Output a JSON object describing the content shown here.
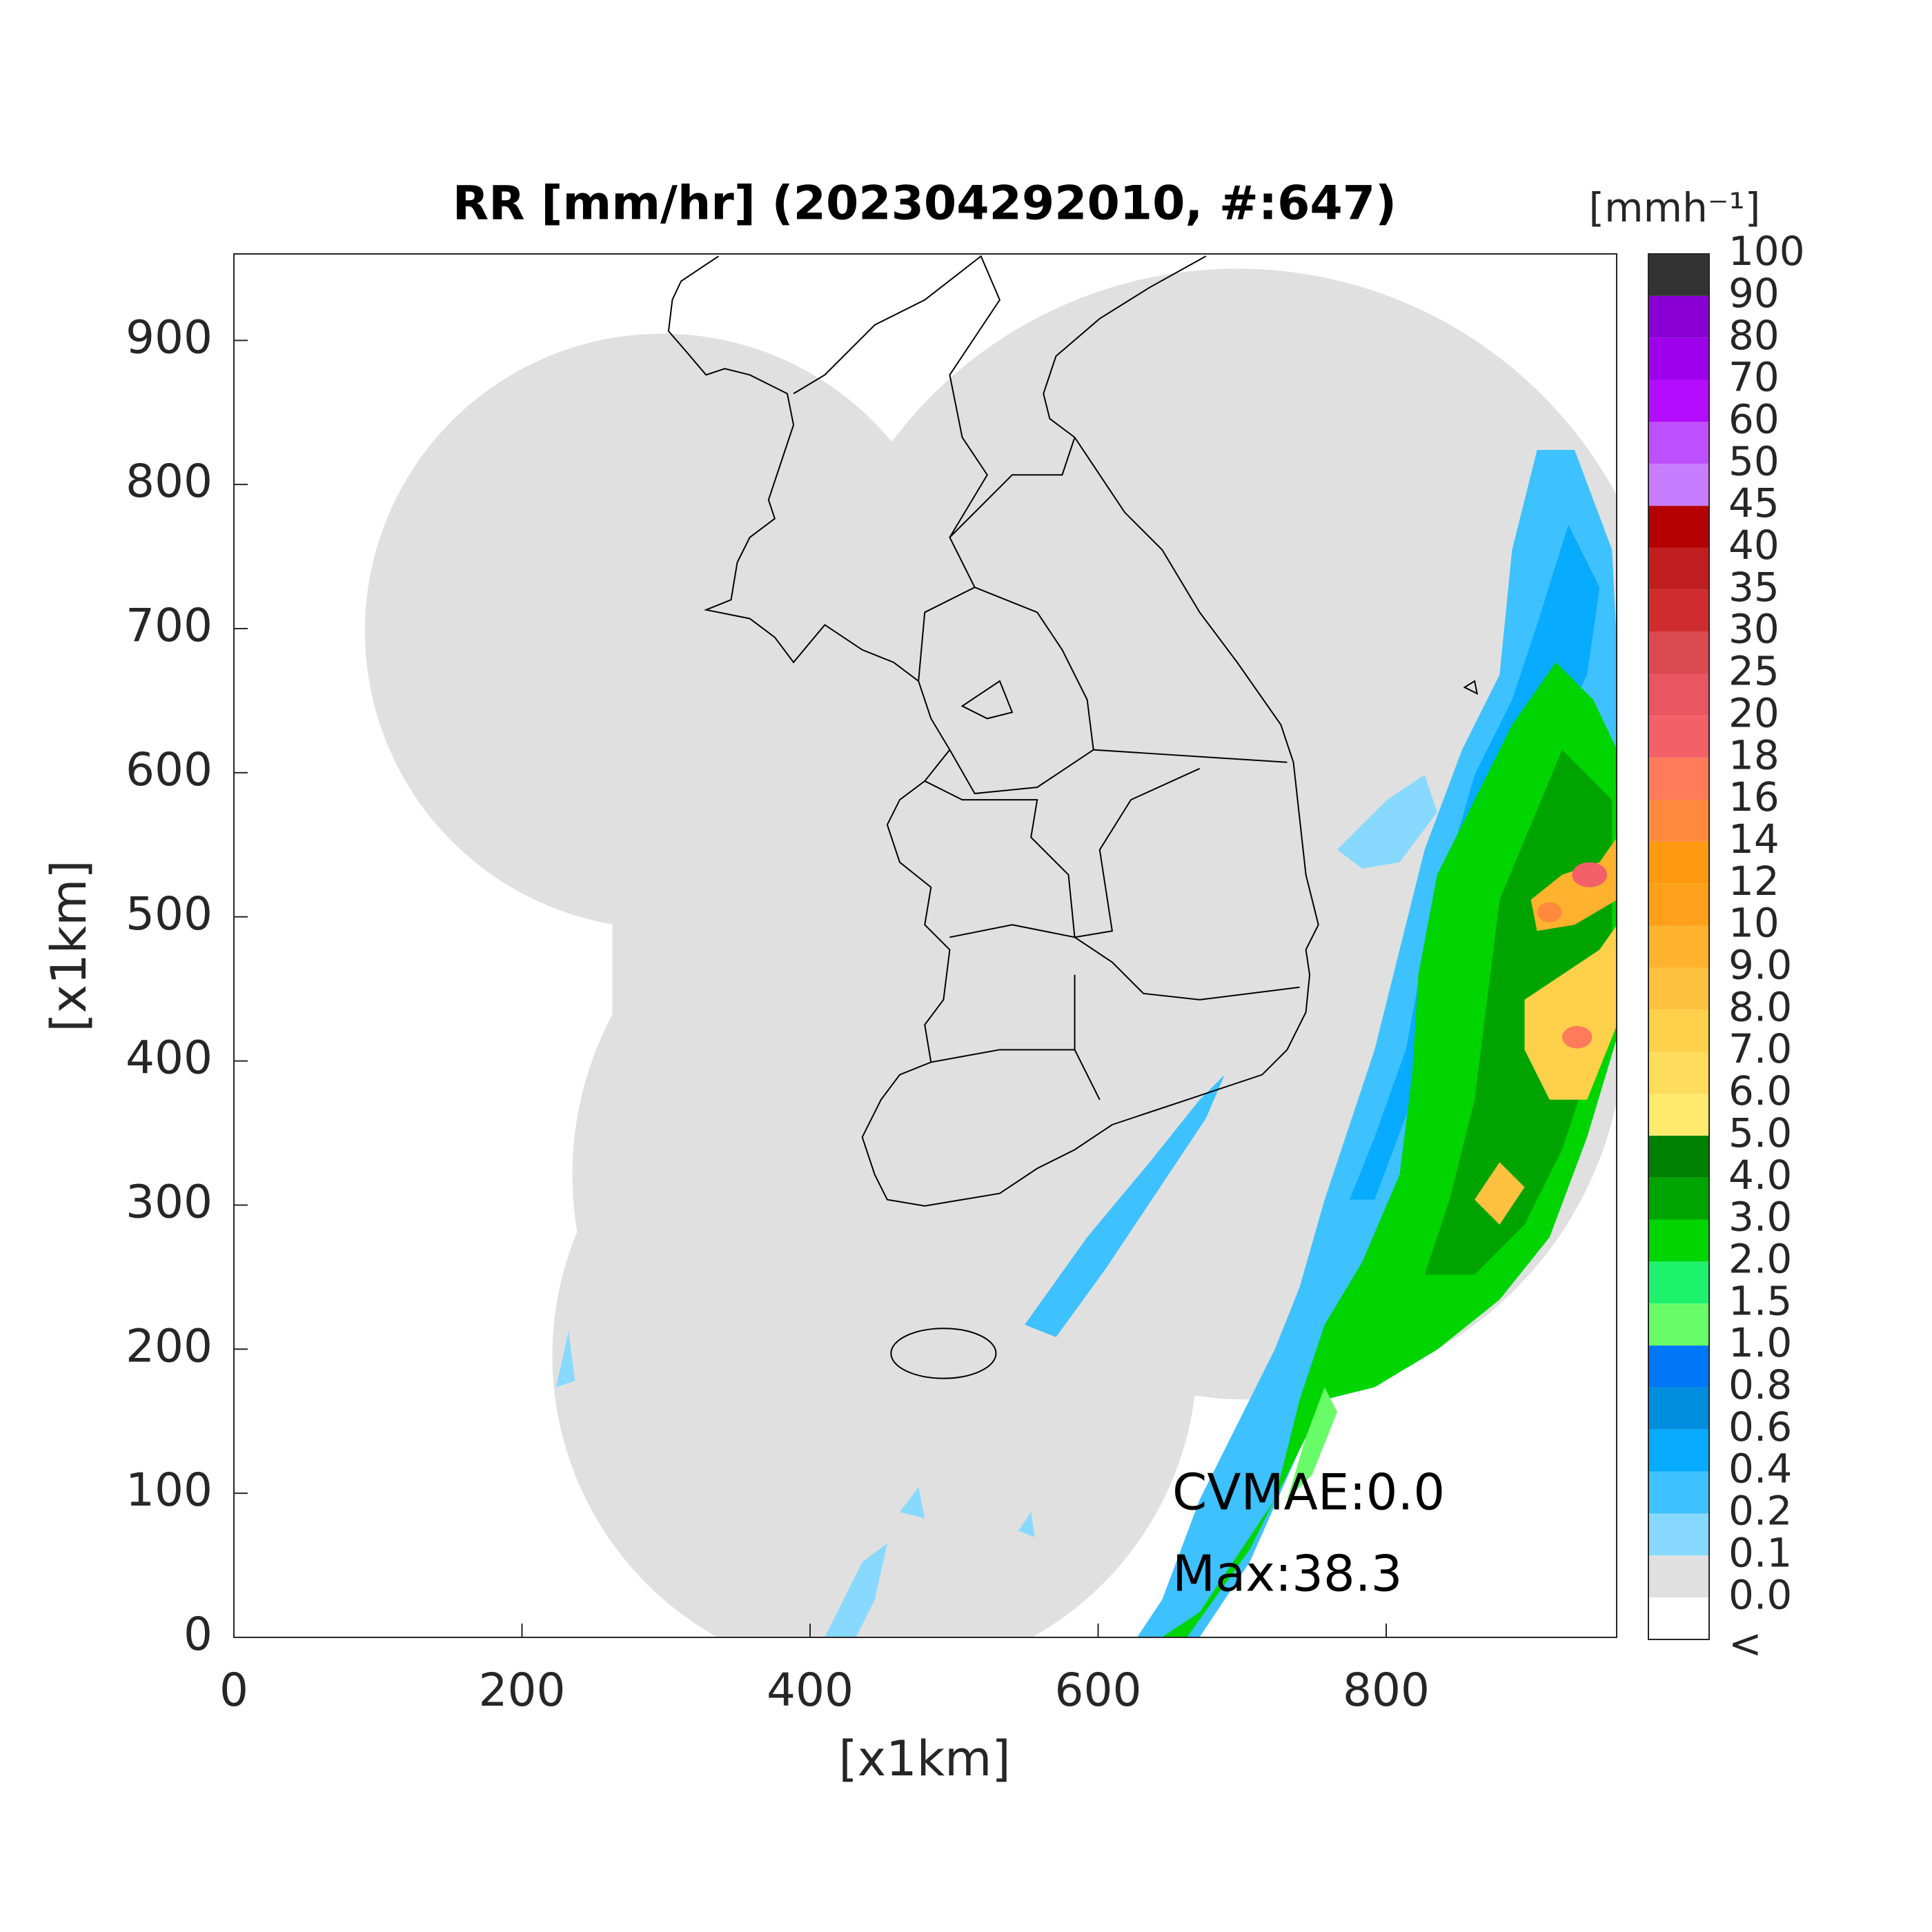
{
  "chart_data": {
    "type": "radar-map",
    "title": "RR [mm/hr] (202304292010, #:647)",
    "xlabel": "[x1km]",
    "ylabel": "[x1km]",
    "xlim": [
      0,
      960
    ],
    "ylim": [
      0,
      960
    ],
    "xticks": [
      0,
      200,
      400,
      600,
      800
    ],
    "yticks": [
      0,
      100,
      200,
      300,
      400,
      500,
      600,
      700,
      800,
      900
    ],
    "annotations": [
      "CVMAE:0.0",
      "Max:38.3"
    ],
    "colorbar": {
      "label": "[mmh⁻¹]",
      "ticks": [
        "<",
        "0.0",
        "0.1",
        "0.2",
        "0.4",
        "0.6",
        "0.8",
        "1.0",
        "1.5",
        "2.0",
        "3.0",
        "4.0",
        "5.0",
        "6.0",
        "7.0",
        "8.0",
        "9.0",
        "10",
        "12",
        "14",
        "16",
        "18",
        "20",
        "25",
        "30",
        "35",
        "40",
        "45",
        "50",
        "60",
        "70",
        "80",
        "90",
        "100"
      ],
      "colors": [
        "#ffffff",
        "#e0e0e0",
        "#87d9ff",
        "#3ec1ff",
        "#07abff",
        "#008dde",
        "#0077f6",
        "#69fc69",
        "#1ef26c",
        "#00d500",
        "#00a400",
        "#008000",
        "#ffea6e",
        "#ffdc5b",
        "#ffd04a",
        "#ffc13f",
        "#ffb22e",
        "#ffa01a",
        "#ff9a10",
        "#ff8a3d",
        "#ff7b5a",
        "#f36068",
        "#e95560",
        "#db4a52",
        "#cf2d2d",
        "#c11f1f",
        "#b40000",
        "#c87dff",
        "#be50ff",
        "#b30cff",
        "#9e00eb",
        "#8a00d4",
        "#333333"
      ]
    }
  }
}
